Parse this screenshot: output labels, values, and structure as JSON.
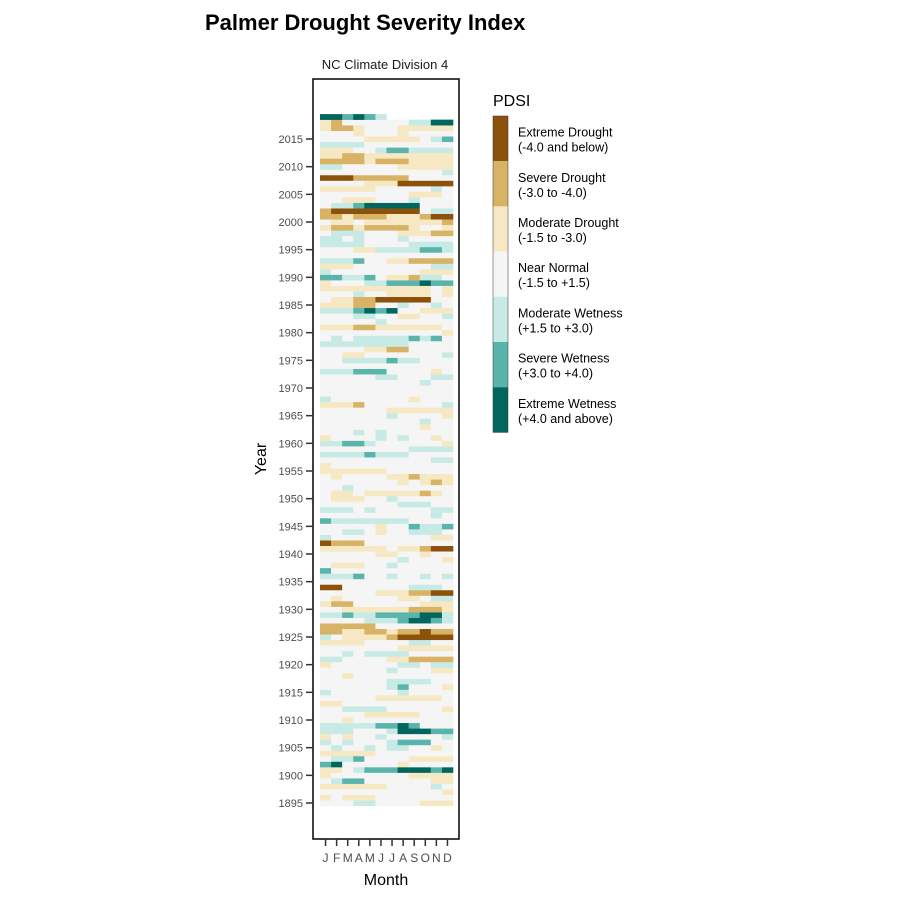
{
  "chart_data": {
    "type": "heatmap",
    "title": "Palmer Drought Severity Index",
    "subtitle": "NC Climate Division 4",
    "xlabel": "Month",
    "ylabel": "Year",
    "x_tick_labels": [
      "J",
      "F",
      "M",
      "A",
      "M",
      "J",
      "J",
      "A",
      "S",
      "O",
      "N",
      "D"
    ],
    "y_ticks": [
      1895,
      1900,
      1905,
      1910,
      1915,
      1920,
      1925,
      1930,
      1935,
      1940,
      1945,
      1950,
      1955,
      1960,
      1965,
      1970,
      1975,
      1980,
      1985,
      1990,
      1995,
      2000,
      2005,
      2010,
      2015
    ],
    "ylim": [
      1895,
      2019
    ],
    "legend": {
      "title": "PDSI",
      "placement": "right",
      "categories": [
        {
          "name": "Extreme Drought",
          "range": "(-4.0 and below)",
          "color": "#8c510a"
        },
        {
          "name": "Severe Drought",
          "range": "(-3.0 to -4.0)",
          "color": "#d8b365"
        },
        {
          "name": "Moderate Drought",
          "range": "(-1.5 to -3.0)",
          "color": "#f6e8c3"
        },
        {
          "name": "Near Normal",
          "range": "(-1.5 to +1.5)",
          "color": "#f5f5f5"
        },
        {
          "name": "Moderate Wetness",
          "range": "(+1.5 to +3.0)",
          "color": "#c7eae5"
        },
        {
          "name": "Severe Wetness",
          "range": "(+3.0 to +4.0)",
          "color": "#5ab4ac"
        },
        {
          "name": "Extreme Wetness",
          "range": "(+4.0 and above)",
          "color": "#01665e"
        }
      ]
    },
    "encoding": "each year maps to 12 monthly category indices (0=Extreme Drought ... 6=Extreme Wetness), '.' = no data",
    "values": {
      "2019": "665654......",
      "2018": "213333334466",
      "2017": "211233322222",
      "2016": "333233323333",
      "2015": "333322222345",
      "2014": "444433333333",
      "2013": "222334554444",
      "2012": "221122222222",
      "2011": "111121112222",
      "2010": "443333322222",
      "2009": "333333333334",
      "2008": "000111113333",
      "2007": "333322200000",
      "2006": "222223333343",
      "2005": "333333332223",
      "2004": "332223334333",
      "2003": "344566666333",
      "2002": "100000000344",
      "2001": "112111222100",
      "2000": "322322222221",
      "1999": "211211112332",
      "1998": "344433322211",
      "1997": "443433343333",
      "1996": "444433334444",
      "1995": "333224444554",
      "1994": "333333333333",
      "1993": "444533221111",
      "1992": "222333333344",
      "1991": "433333333222",
      "1990": "554453221443",
      "1989": "233344555655",
      "1988": "222222222232",
      "1987": "333433222232",
      "1986": "322110000033",
      "1985": "222113343343",
      "1984": "444565633222",
      "1983": "333443322334",
      "1982": "333334333333",
      "1981": "222112222223",
      "1980": "333333333332",
      "1979": "343444445453",
      "1978": "444444443333",
      "1977": "333322113333",
      "1976": "332233333334",
      "1975": "334444544333",
      "1974": "333333333333",
      "1973": "444555333323",
      "1972": "333334433344",
      "1971": "333333333433",
      "1970": "333333333333",
      "1969": "333333333333",
      "1968": "433333332333",
      "1967": "222133333334",
      "1966": "333333222222",
      "1965": "333333433332",
      "1964": "333333333433",
      "1963": "333333333233",
      "1962": "333434333333",
      "1961": "233334343323",
      "1960": "445543333332",
      "1959": "333333334444",
      "1958": "444454443333",
      "1957": "333333333344",
      "1956": "233333333333",
      "1955": "222222333333",
      "1954": "323333221222",
      "1953": "333333323212",
      "1952": "334333333333",
      "1951": "322322222123",
      "1950": "322233433333",
      "1949": "333333344433",
      "1948": "444343333344",
      "1947": "333333333343",
      "1946": "544444443333",
      "1945": "333332335445",
      "1944": "334432334443",
      "1943": "433333333322",
      "1942": "011133333333",
      "1941": "222222322100",
      "1940": "333332233233",
      "1939": "333333343332",
      "1938": "322233433333",
      "1937": "533333333333",
      "1936": "444533433434",
      "1935": "333333333333",
      "1934": "003333334443",
      "1933": "333332221100",
      "1932": "323333322344",
      "1931": "211333333222",
      "1930": "332222221112",
      "1929": "445445555664",
      "1928": "333344456654",
      "1927": "111113333333",
      "1926": "112211211011",
      "1925": "432222100000",
      "1924": "222233334433",
      "1923": "333333322222",
      "1922": "334344443333",
      "1921": "443333221111",
      "1920": "233333344344",
      "1919": "333333433322",
      "1918": "332333333333",
      "1917": "333333444433",
      "1916": "333333453332",
      "1915": "433333343333",
      "1914": "333332222223",
      "1913": "223333333333",
      "1912": "334444333332",
      "1911": "333322222333",
      "1910": "332333333333",
      "1909": "444445565333",
      "1908": "444333466655",
      "1907": "232334333334",
      "1906": "434333455533",
      "1905": "343343443323",
      "1904": "222223333333",
      "1903": "344533332222",
      "1902": "563333323333",
      "1901": "223455566656",
      "1900": "233333332222",
      "1899": "345533333322",
      "1898": "222222333343",
      "1897": "333333333332",
      "1896": "232223333333",
      "1895": "333443333222"
    }
  }
}
